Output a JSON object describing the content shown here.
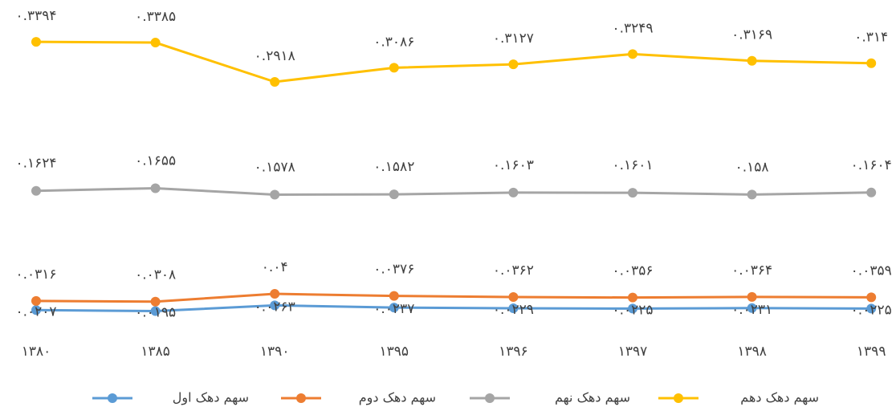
{
  "chart_data": {
    "type": "line",
    "categories": [
      "۱۳۸۰",
      "۱۳۸۵",
      "۱۳۹۰",
      "۱۳۹۵",
      "۱۳۹۶",
      "۱۳۹۷",
      "۱۳۹۸",
      "۱۳۹۹"
    ],
    "ylim": [
      0,
      0.35
    ],
    "legend": "bottom",
    "series": [
      {
        "name": "سهم دهک اول",
        "color": "#5b9bd5",
        "values": [
          0.0207,
          0.0195,
          0.0263,
          0.0237,
          0.0229,
          0.0225,
          0.0231,
          0.0225
        ],
        "value_labels": [
          "۰.۰۲۰۷",
          "۰.۰۱۹۵",
          "۰.۰۲۶۳",
          "۰.۰۲۳۷",
          "۰.۰۲۲۹",
          "۰.۰۲۲۵",
          "۰.۰۲۳۱",
          "۰.۰۲۲۵"
        ]
      },
      {
        "name": "سهم دهک دوم",
        "color": "#ed7d31",
        "values": [
          0.0316,
          0.0308,
          0.04,
          0.0376,
          0.0362,
          0.0356,
          0.0364,
          0.0359
        ],
        "value_labels": [
          "۰.۰۳۱۶",
          "۰.۰۳۰۸",
          "۰.۰۴",
          "۰.۰۳۷۶",
          "۰.۰۳۶۲",
          "۰.۰۳۵۶",
          "۰.۰۳۶۴",
          "۰.۰۳۵۹"
        ]
      },
      {
        "name": "سهم دهک نهم",
        "color": "#a5a5a5",
        "values": [
          0.1624,
          0.1655,
          0.1578,
          0.1582,
          0.1603,
          0.1601,
          0.158,
          0.1604
        ],
        "value_labels": [
          "۰.۱۶۲۴",
          "۰.۱۶۵۵",
          "۰.۱۵۷۸",
          "۰.۱۵۸۲",
          "۰.۱۶۰۳",
          "۰.۱۶۰۱",
          "۰.۱۵۸",
          "۰.۱۶۰۴"
        ]
      },
      {
        "name": "سهم دهک دهم",
        "color": "#ffc000",
        "values": [
          0.3394,
          0.3385,
          0.2918,
          0.3086,
          0.3127,
          0.3249,
          0.3169,
          0.314
        ],
        "value_labels": [
          "۰.۳۳۹۴",
          "۰.۳۳۸۵",
          "۰.۲۹۱۸",
          "۰.۳۰۸۶",
          "۰.۳۱۲۷",
          "۰.۳۲۴۹",
          "۰.۳۱۶۹",
          "۰.۳۱۴"
        ]
      }
    ]
  }
}
